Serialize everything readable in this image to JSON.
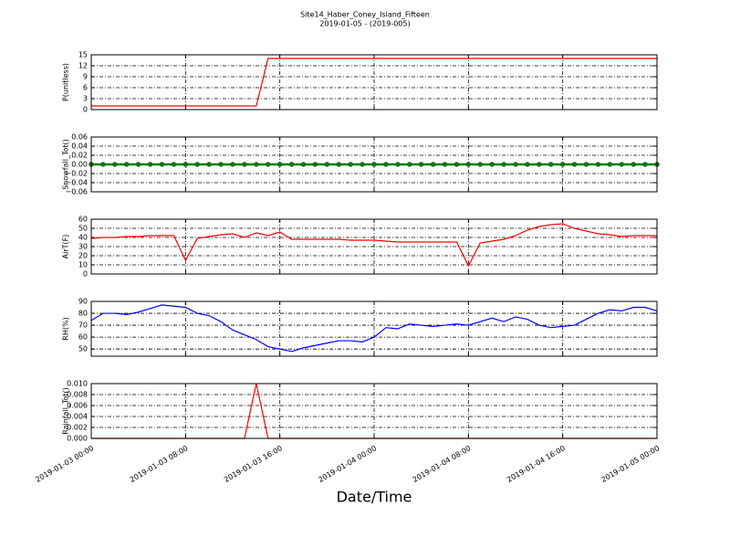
{
  "title": "Site14_Haber_Coney_Island_Fifteen",
  "subtitle": "2019-01-05 - (2019-005)",
  "xlabel": "Date/Time",
  "chart_data": [
    {
      "type": "line",
      "ylabel": "P(unitless)",
      "color": "#ff0000",
      "x": [
        "2019-01-03 00:00",
        "2019-01-03 01:00",
        "2019-01-03 02:00",
        "2019-01-03 03:00",
        "2019-01-03 04:00",
        "2019-01-03 05:00",
        "2019-01-03 06:00",
        "2019-01-03 07:00",
        "2019-01-03 08:00",
        "2019-01-03 09:00",
        "2019-01-03 10:00",
        "2019-01-03 11:00",
        "2019-01-03 12:00",
        "2019-01-03 13:00",
        "2019-01-03 14:00",
        "2019-01-03 15:00",
        "2019-01-03 16:00",
        "2019-01-03 17:00",
        "2019-01-03 18:00",
        "2019-01-03 19:00",
        "2019-01-03 20:00",
        "2019-01-03 21:00",
        "2019-01-03 22:00",
        "2019-01-03 23:00",
        "2019-01-04 00:00",
        "2019-01-04 01:00",
        "2019-01-04 02:00",
        "2019-01-04 03:00",
        "2019-01-04 04:00",
        "2019-01-04 05:00",
        "2019-01-04 06:00",
        "2019-01-04 07:00",
        "2019-01-04 08:00",
        "2019-01-04 09:00",
        "2019-01-04 10:00",
        "2019-01-04 11:00",
        "2019-01-04 12:00",
        "2019-01-04 13:00",
        "2019-01-04 14:00",
        "2019-01-04 15:00",
        "2019-01-04 16:00",
        "2019-01-04 17:00",
        "2019-01-04 18:00",
        "2019-01-04 19:00",
        "2019-01-04 20:00",
        "2019-01-04 21:00",
        "2019-01-04 22:00",
        "2019-01-04 23:00",
        "2019-01-05 00:00"
      ],
      "values": [
        1,
        1,
        1,
        1,
        1,
        1,
        1,
        1,
        1,
        1,
        1,
        1,
        1,
        1,
        1,
        14,
        14,
        14,
        14,
        14,
        14,
        14,
        14,
        14,
        14,
        14,
        14,
        14,
        14,
        14,
        14,
        14,
        14,
        14,
        14,
        14,
        14,
        14,
        14,
        14,
        14,
        14,
        14,
        14,
        14,
        14,
        14,
        14,
        14
      ],
      "xlim": [
        "2019-01-03 00:00",
        "2019-01-05 00:00"
      ],
      "xticks": [
        "2019-01-03 00:00",
        "2019-01-03 08:00",
        "2019-01-03 16:00",
        "2019-01-04 00:00",
        "2019-01-04 08:00",
        "2019-01-04 16:00",
        "2019-01-05 00:00"
      ],
      "ylim": [
        0,
        15
      ],
      "yticks": [
        0,
        3,
        6,
        9,
        12,
        15
      ],
      "grid": true
    },
    {
      "type": "line",
      "ylabel": "Snowfall_Tot()",
      "color": "#008000",
      "marker": true,
      "x": [
        "2019-01-03 00:00",
        "2019-01-03 01:00",
        "2019-01-03 02:00",
        "2019-01-03 03:00",
        "2019-01-03 04:00",
        "2019-01-03 05:00",
        "2019-01-03 06:00",
        "2019-01-03 07:00",
        "2019-01-03 08:00",
        "2019-01-03 09:00",
        "2019-01-03 10:00",
        "2019-01-03 11:00",
        "2019-01-03 12:00",
        "2019-01-03 13:00",
        "2019-01-03 14:00",
        "2019-01-03 15:00",
        "2019-01-03 16:00",
        "2019-01-03 17:00",
        "2019-01-03 18:00",
        "2019-01-03 19:00",
        "2019-01-03 20:00",
        "2019-01-03 21:00",
        "2019-01-03 22:00",
        "2019-01-03 23:00",
        "2019-01-04 00:00",
        "2019-01-04 01:00",
        "2019-01-04 02:00",
        "2019-01-04 03:00",
        "2019-01-04 04:00",
        "2019-01-04 05:00",
        "2019-01-04 06:00",
        "2019-01-04 07:00",
        "2019-01-04 08:00",
        "2019-01-04 09:00",
        "2019-01-04 10:00",
        "2019-01-04 11:00",
        "2019-01-04 12:00",
        "2019-01-04 13:00",
        "2019-01-04 14:00",
        "2019-01-04 15:00",
        "2019-01-04 16:00",
        "2019-01-04 17:00",
        "2019-01-04 18:00",
        "2019-01-04 19:00",
        "2019-01-04 20:00",
        "2019-01-04 21:00",
        "2019-01-04 22:00",
        "2019-01-04 23:00",
        "2019-01-05 00:00"
      ],
      "values": [
        0,
        0,
        0,
        0,
        0,
        0,
        0,
        0,
        0,
        0,
        0,
        0,
        0,
        0,
        0,
        0,
        0,
        0,
        0,
        0,
        0,
        0,
        0,
        0,
        0,
        0,
        0,
        0,
        0,
        0,
        0,
        0,
        0,
        0,
        0,
        0,
        0,
        0,
        0,
        0,
        0,
        0,
        0,
        0,
        0,
        0,
        0,
        0,
        0
      ],
      "xlim": [
        "2019-01-03 00:00",
        "2019-01-05 00:00"
      ],
      "xticks": [
        "2019-01-03 00:00",
        "2019-01-03 08:00",
        "2019-01-03 16:00",
        "2019-01-04 00:00",
        "2019-01-04 08:00",
        "2019-01-04 16:00",
        "2019-01-05 00:00"
      ],
      "ylim": [
        -0.06,
        0.06
      ],
      "yticks": [
        {
          "value": -0.06,
          "label": "−0.06"
        },
        {
          "value": -0.04,
          "label": "−0.04"
        },
        {
          "value": -0.02,
          "label": "−0.02"
        },
        {
          "value": 0,
          "label": "0.00"
        },
        0.02,
        0.04,
        0.06
      ],
      "grid": true
    },
    {
      "type": "line",
      "ylabel": "AirT(F)",
      "color": "#ff0000",
      "x": [
        "2019-01-03 00:00",
        "2019-01-03 01:00",
        "2019-01-03 02:00",
        "2019-01-03 03:00",
        "2019-01-03 04:00",
        "2019-01-03 05:00",
        "2019-01-03 06:00",
        "2019-01-03 07:00",
        "2019-01-03 08:00",
        "2019-01-03 09:00",
        "2019-01-03 10:00",
        "2019-01-03 11:00",
        "2019-01-03 12:00",
        "2019-01-03 13:00",
        "2019-01-03 14:00",
        "2019-01-03 15:00",
        "2019-01-03 16:00",
        "2019-01-03 17:00",
        "2019-01-03 18:00",
        "2019-01-03 19:00",
        "2019-01-03 20:00",
        "2019-01-03 21:00",
        "2019-01-03 22:00",
        "2019-01-03 23:00",
        "2019-01-04 00:00",
        "2019-01-04 01:00",
        "2019-01-04 02:00",
        "2019-01-04 03:00",
        "2019-01-04 04:00",
        "2019-01-04 05:00",
        "2019-01-04 06:00",
        "2019-01-04 07:00",
        "2019-01-04 08:00",
        "2019-01-04 09:00",
        "2019-01-04 10:00",
        "2019-01-04 11:00",
        "2019-01-04 12:00",
        "2019-01-04 13:00",
        "2019-01-04 14:00",
        "2019-01-04 15:00",
        "2019-01-04 16:00",
        "2019-01-04 17:00",
        "2019-01-04 18:00",
        "2019-01-04 19:00",
        "2019-01-04 20:00",
        "2019-01-04 21:00",
        "2019-01-04 22:00",
        "2019-01-04 23:00",
        "2019-01-05 00:00"
      ],
      "values": [
        39,
        40,
        40,
        41,
        41,
        42,
        42,
        42,
        15,
        39,
        41,
        43,
        44,
        40,
        45,
        42,
        46,
        38,
        38,
        38,
        38,
        38,
        37,
        37,
        37,
        36,
        35,
        35,
        35,
        35,
        35,
        35,
        9,
        34,
        36,
        38,
        42,
        48,
        52,
        54,
        55,
        50,
        47,
        44,
        43,
        41,
        42,
        42,
        42
      ],
      "xlim": [
        "2019-01-03 00:00",
        "2019-01-05 00:00"
      ],
      "xticks": [
        "2019-01-03 00:00",
        "2019-01-03 08:00",
        "2019-01-03 16:00",
        "2019-01-04 00:00",
        "2019-01-04 08:00",
        "2019-01-04 16:00",
        "2019-01-05 00:00"
      ],
      "ylim": [
        0,
        60
      ],
      "yticks": [
        0,
        10,
        20,
        30,
        40,
        50,
        60
      ],
      "grid": true
    },
    {
      "type": "line",
      "ylabel": "RH(%)",
      "color": "#0000ff",
      "x": [
        "2019-01-03 00:00",
        "2019-01-03 01:00",
        "2019-01-03 02:00",
        "2019-01-03 03:00",
        "2019-01-03 04:00",
        "2019-01-03 05:00",
        "2019-01-03 06:00",
        "2019-01-03 07:00",
        "2019-01-03 08:00",
        "2019-01-03 09:00",
        "2019-01-03 10:00",
        "2019-01-03 11:00",
        "2019-01-03 12:00",
        "2019-01-03 13:00",
        "2019-01-03 14:00",
        "2019-01-03 15:00",
        "2019-01-03 16:00",
        "2019-01-03 17:00",
        "2019-01-03 18:00",
        "2019-01-03 19:00",
        "2019-01-03 20:00",
        "2019-01-03 21:00",
        "2019-01-03 22:00",
        "2019-01-03 23:00",
        "2019-01-04 00:00",
        "2019-01-04 01:00",
        "2019-01-04 02:00",
        "2019-01-04 03:00",
        "2019-01-04 04:00",
        "2019-01-04 05:00",
        "2019-01-04 06:00",
        "2019-01-04 07:00",
        "2019-01-04 08:00",
        "2019-01-04 09:00",
        "2019-01-04 10:00",
        "2019-01-04 11:00",
        "2019-01-04 12:00",
        "2019-01-04 13:00",
        "2019-01-04 14:00",
        "2019-01-04 15:00",
        "2019-01-04 16:00",
        "2019-01-04 17:00",
        "2019-01-04 18:00",
        "2019-01-04 19:00",
        "2019-01-04 20:00",
        "2019-01-04 21:00",
        "2019-01-04 22:00",
        "2019-01-04 23:00",
        "2019-01-05 00:00"
      ],
      "values": [
        74,
        80,
        80,
        79,
        81,
        84,
        87,
        86,
        85,
        80,
        78,
        73,
        66,
        62,
        58,
        52,
        50,
        48,
        51,
        53,
        55,
        57,
        57,
        56,
        60,
        68,
        67,
        71,
        70,
        69,
        70,
        71,
        70,
        73,
        76,
        73,
        77,
        75,
        70,
        68,
        69,
        70,
        75,
        80,
        83,
        82,
        85,
        85,
        82
      ],
      "xlim": [
        "2019-01-03 00:00",
        "2019-01-05 00:00"
      ],
      "xticks": [
        "2019-01-03 00:00",
        "2019-01-03 08:00",
        "2019-01-03 16:00",
        "2019-01-04 00:00",
        "2019-01-04 08:00",
        "2019-01-04 16:00",
        "2019-01-05 00:00"
      ],
      "ylim": [
        44,
        90
      ],
      "yticks": [
        50,
        60,
        70,
        80,
        90
      ],
      "grid": true
    },
    {
      "type": "line",
      "ylabel": "Rainfall_Tot()",
      "color": "#ff0000",
      "x": [
        "2019-01-03 00:00",
        "2019-01-03 01:00",
        "2019-01-03 02:00",
        "2019-01-03 03:00",
        "2019-01-03 04:00",
        "2019-01-03 05:00",
        "2019-01-03 06:00",
        "2019-01-03 07:00",
        "2019-01-03 08:00",
        "2019-01-03 09:00",
        "2019-01-03 10:00",
        "2019-01-03 11:00",
        "2019-01-03 12:00",
        "2019-01-03 13:00",
        "2019-01-03 14:00",
        "2019-01-03 15:00",
        "2019-01-03 16:00",
        "2019-01-03 17:00",
        "2019-01-03 18:00",
        "2019-01-03 19:00",
        "2019-01-03 20:00",
        "2019-01-03 21:00",
        "2019-01-03 22:00",
        "2019-01-03 23:00",
        "2019-01-04 00:00",
        "2019-01-04 01:00",
        "2019-01-04 02:00",
        "2019-01-04 03:00",
        "2019-01-04 04:00",
        "2019-01-04 05:00",
        "2019-01-04 06:00",
        "2019-01-04 07:00",
        "2019-01-04 08:00",
        "2019-01-04 09:00",
        "2019-01-04 10:00",
        "2019-01-04 11:00",
        "2019-01-04 12:00",
        "2019-01-04 13:00",
        "2019-01-04 14:00",
        "2019-01-04 15:00",
        "2019-01-04 16:00",
        "2019-01-04 17:00",
        "2019-01-04 18:00",
        "2019-01-04 19:00",
        "2019-01-04 20:00",
        "2019-01-04 21:00",
        "2019-01-04 22:00",
        "2019-01-04 23:00",
        "2019-01-05 00:00"
      ],
      "values": [
        0,
        0,
        0,
        0,
        0,
        0,
        0,
        0,
        0,
        0,
        0,
        0,
        0,
        0,
        0.01,
        0,
        0,
        0,
        0,
        0,
        0,
        0,
        0,
        0,
        0,
        0,
        0,
        0,
        0,
        0,
        0,
        0,
        0,
        0,
        0,
        0,
        0,
        0,
        0,
        0,
        0,
        0,
        0,
        0,
        0,
        0,
        0,
        0,
        0
      ],
      "xlim": [
        "2019-01-03 00:00",
        "2019-01-05 00:00"
      ],
      "xticks": [
        "2019-01-03 00:00",
        "2019-01-03 08:00",
        "2019-01-03 16:00",
        "2019-01-04 00:00",
        "2019-01-04 08:00",
        "2019-01-04 16:00",
        "2019-01-05 00:00"
      ],
      "ylim": [
        0,
        0.01
      ],
      "yticks": [
        {
          "value": 0,
          "label": "0.000"
        },
        0.002,
        0.004,
        0.006,
        0.008,
        {
          "value": 0.01,
          "label": "0.010"
        }
      ],
      "grid": true
    }
  ]
}
